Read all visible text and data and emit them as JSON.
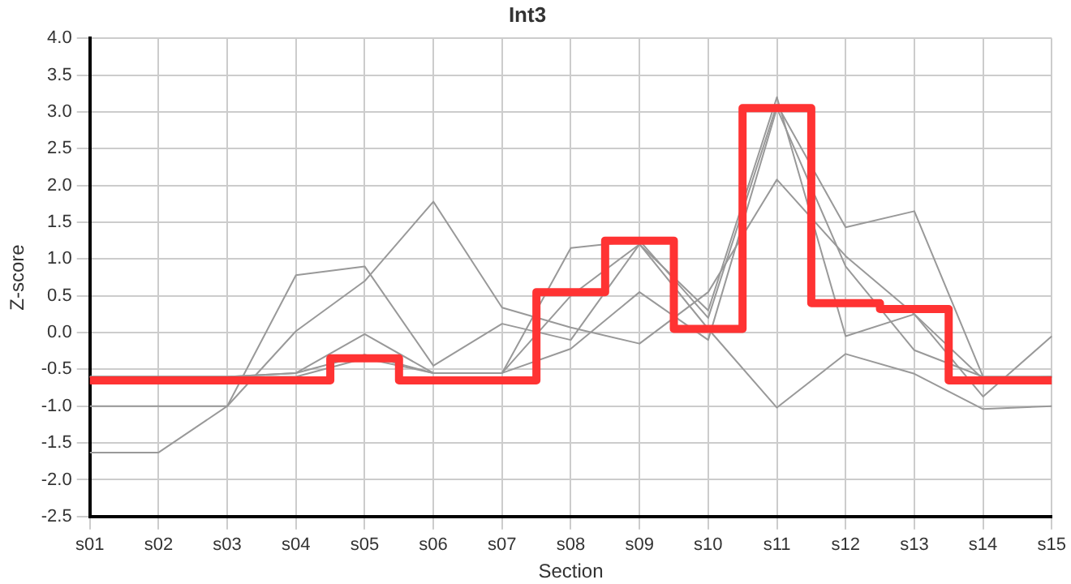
{
  "chart_data": {
    "type": "line",
    "title": "Int3",
    "xlabel": "Section",
    "ylabel": "Z-score",
    "categories": [
      "s01",
      "s02",
      "s03",
      "s04",
      "s05",
      "s06",
      "s07",
      "s08",
      "s09",
      "s10",
      "s11",
      "s12",
      "s13",
      "s14",
      "s15"
    ],
    "series": [
      {
        "color": "#999999",
        "values": [
          -1.0,
          -1.0,
          -1.0,
          0.78,
          0.9,
          -0.45,
          0.12,
          -0.1,
          1.2,
          0.3,
          3.2,
          -0.05,
          0.25,
          -0.63,
          -0.6
        ]
      },
      {
        "color": "#999999",
        "values": [
          -1.63,
          -1.63,
          -1.0,
          0.02,
          0.7,
          1.78,
          0.34,
          0.07,
          -0.15,
          0.55,
          2.08,
          1.04,
          0.25,
          -0.87,
          -0.05
        ]
      },
      {
        "color": "#999999",
        "values": [
          -0.6,
          -0.6,
          -0.6,
          -0.55,
          -0.02,
          -0.55,
          -0.55,
          1.15,
          1.25,
          0.2,
          3.1,
          1.43,
          1.65,
          -0.6,
          -0.6
        ]
      },
      {
        "color": "#999999",
        "values": [
          -0.6,
          -0.6,
          -0.6,
          -0.55,
          -0.3,
          -0.55,
          -0.55,
          0.5,
          1.2,
          0.05,
          -1.02,
          -0.29,
          -0.56,
          -1.04,
          -1.0
        ]
      },
      {
        "color": "#999999",
        "values": [
          -0.6,
          -0.6,
          -0.6,
          -0.6,
          -0.35,
          -0.55,
          -0.55,
          -0.22,
          0.55,
          -0.1,
          3.05,
          0.9,
          -0.24,
          -0.6,
          -0.6
        ]
      },
      {
        "type": "step",
        "color": "#ff3333",
        "values": [
          -0.65,
          -0.65,
          -0.65,
          -0.65,
          -0.35,
          -0.65,
          -0.65,
          0.55,
          1.25,
          0.05,
          3.05,
          0.4,
          0.32,
          -0.65,
          -0.65
        ]
      }
    ],
    "ylim": [
      -2.5,
      4.0
    ],
    "yticks": [
      {
        "value": -2.5,
        "label": "-2.5"
      },
      {
        "value": -2,
        "label": "-2.0"
      },
      {
        "value": -1.5,
        "label": "-1.5"
      },
      {
        "value": -1,
        "label": "-1.0"
      },
      {
        "value": -0.5,
        "label": "-0.5"
      },
      {
        "value": 0,
        "label": "0.0"
      },
      {
        "value": 0.5,
        "label": "0.5"
      },
      {
        "value": 1,
        "label": "1.0"
      },
      {
        "value": 1.5,
        "label": "1.5"
      },
      {
        "value": 2,
        "label": "2.0"
      },
      {
        "value": 2.5,
        "label": "2.5"
      },
      {
        "value": 3,
        "label": "3.0"
      },
      {
        "value": 3.5,
        "label": "3.5"
      },
      {
        "value": 4,
        "label": "4.0"
      }
    ],
    "grid": true,
    "legend": false,
    "marker": "none",
    "line_style": "solid"
  }
}
